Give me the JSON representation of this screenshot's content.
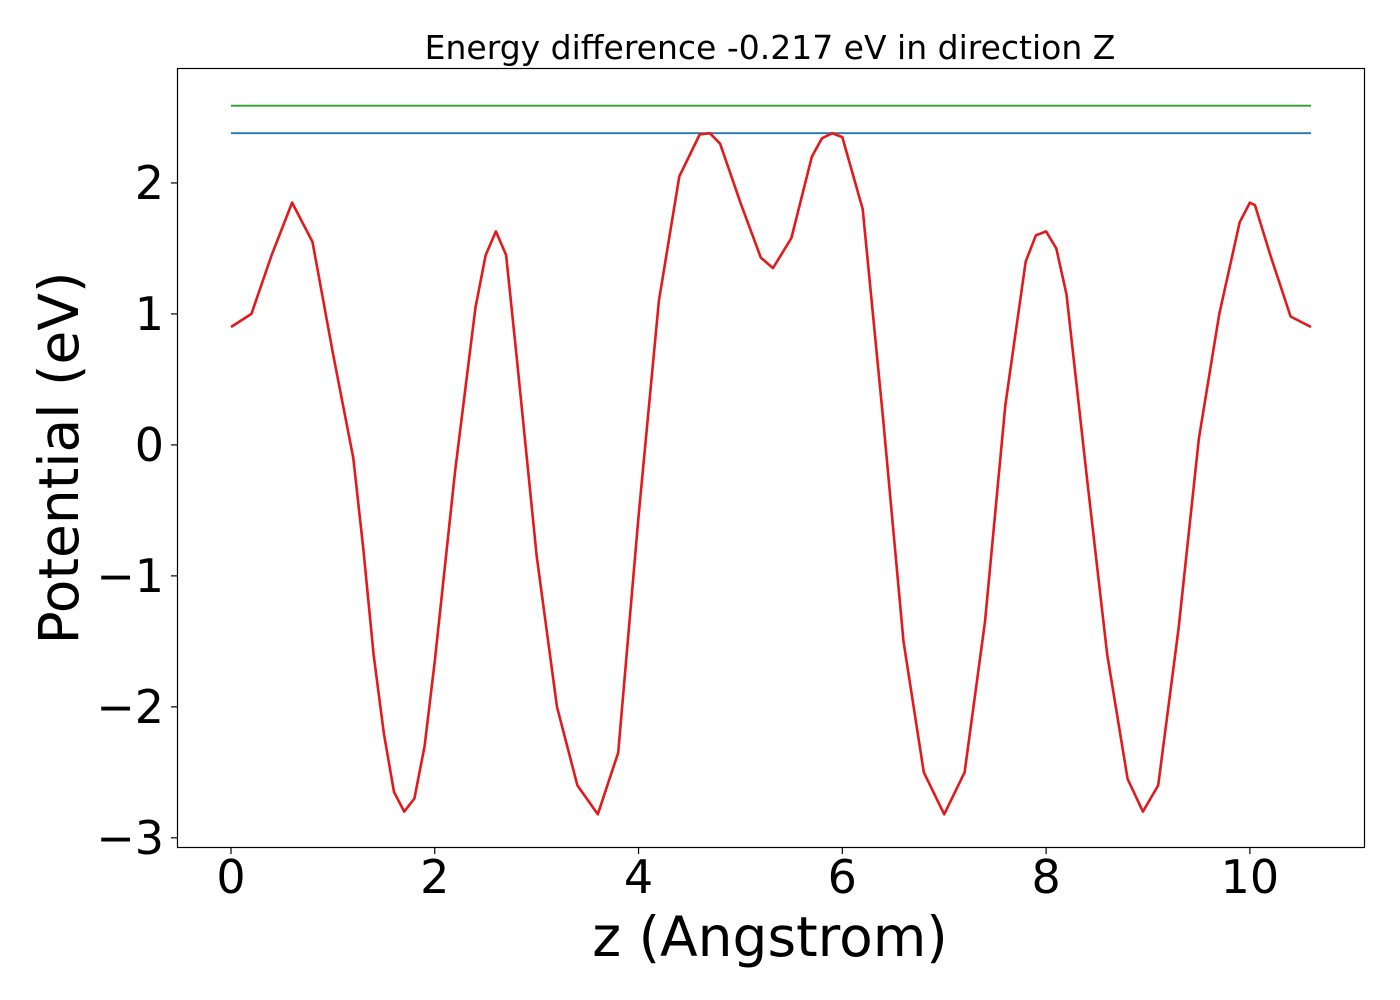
{
  "chart_data": {
    "type": "line",
    "title": "Energy difference -0.217 eV in direction Z",
    "xlabel": "z (Angstrom)",
    "ylabel": "Potential (eV)",
    "xlim": [
      -0.52,
      11.12
    ],
    "ylim": [
      -3.07,
      2.87
    ],
    "xticks": [
      0,
      2,
      4,
      6,
      8,
      10
    ],
    "xtick_labels": [
      "0",
      "2",
      "4",
      "6",
      "8",
      "10"
    ],
    "yticks": [
      -3,
      -2,
      -1,
      0,
      1,
      2
    ],
    "ytick_labels": [
      "−3",
      "−2",
      "−1",
      "0",
      "1",
      "2"
    ],
    "grid": false,
    "series": [
      {
        "color": "#e31a1c",
        "x": [
          0.0,
          0.2,
          0.4,
          0.6,
          0.8,
          1.0,
          1.1,
          1.2,
          1.3,
          1.4,
          1.5,
          1.6,
          1.7,
          1.8,
          1.9,
          2.0,
          2.2,
          2.4,
          2.5,
          2.6,
          2.7,
          2.8,
          3.0,
          3.2,
          3.4,
          3.6,
          3.8,
          4.0,
          4.2,
          4.4,
          4.6,
          4.7,
          4.8,
          5.0,
          5.2,
          5.32,
          5.5,
          5.7,
          5.8,
          5.9,
          6.0,
          6.2,
          6.4,
          6.6,
          6.8,
          7.0,
          7.2,
          7.4,
          7.6,
          7.8,
          7.9,
          8.0,
          8.1,
          8.2,
          8.4,
          8.6,
          8.8,
          8.95,
          9.1,
          9.3,
          9.5,
          9.7,
          9.9,
          10.0,
          10.05,
          10.2,
          10.4,
          10.6
        ],
        "y": [
          0.9,
          1.0,
          1.45,
          1.85,
          1.55,
          0.7,
          0.3,
          -0.1,
          -0.8,
          -1.6,
          -2.2,
          -2.65,
          -2.8,
          -2.7,
          -2.3,
          -1.65,
          -0.2,
          1.05,
          1.45,
          1.63,
          1.45,
          0.7,
          -0.85,
          -2.0,
          -2.6,
          -2.82,
          -2.35,
          -0.55,
          1.1,
          2.05,
          2.37,
          2.38,
          2.3,
          1.85,
          1.43,
          1.35,
          1.58,
          2.2,
          2.34,
          2.38,
          2.35,
          1.8,
          0.2,
          -1.5,
          -2.5,
          -2.82,
          -2.5,
          -1.35,
          0.3,
          1.4,
          1.6,
          1.63,
          1.5,
          1.15,
          -0.25,
          -1.6,
          -2.55,
          -2.8,
          -2.6,
          -1.4,
          0.05,
          1.0,
          1.7,
          1.85,
          1.83,
          1.45,
          0.98,
          0.9
        ]
      },
      {
        "color": "#1f77b4",
        "x": [
          0.0,
          10.6
        ],
        "y": [
          2.38,
          2.38
        ]
      },
      {
        "color": "#2ca02c",
        "x": [
          0.0,
          10.6
        ],
        "y": [
          2.59,
          2.59
        ]
      }
    ]
  }
}
